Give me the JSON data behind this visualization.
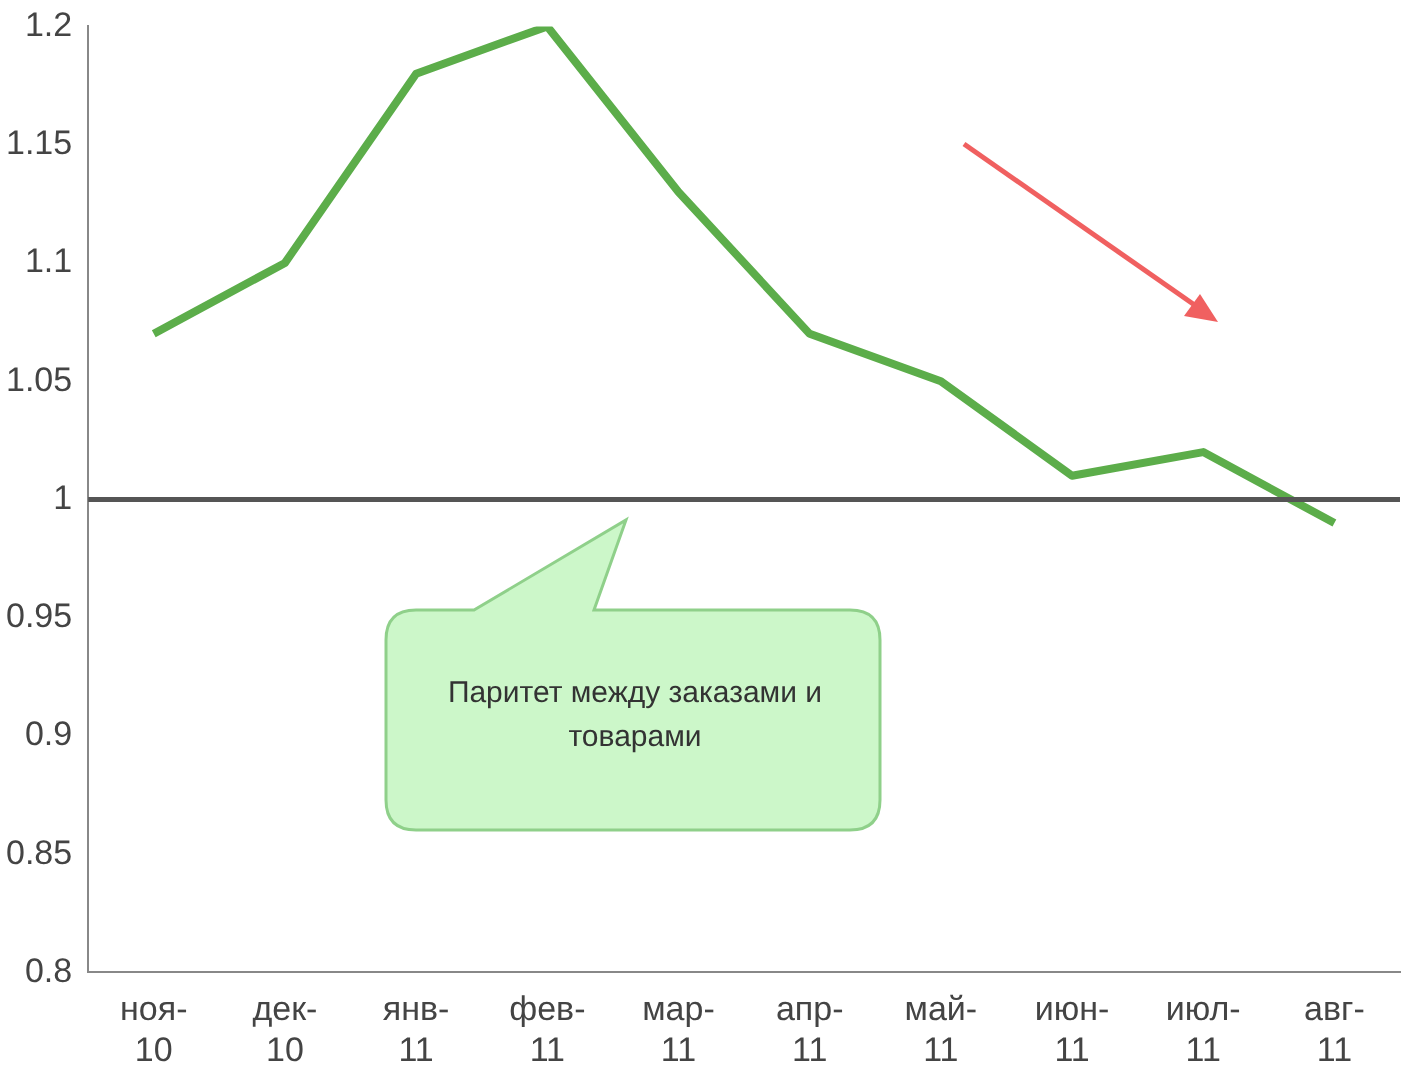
{
  "chart_data": {
    "type": "line",
    "categories": [
      "ноя-10",
      "дек-10",
      "янв-11",
      "фев-11",
      "мар-11",
      "апр-11",
      "май-11",
      "июн-11",
      "июл-11",
      "авг-11"
    ],
    "series": [
      {
        "color": "#5cad4a",
        "values": [
          1.07,
          1.1,
          1.18,
          1.2,
          1.13,
          1.07,
          1.05,
          1.01,
          1.02,
          0.99
        ]
      }
    ],
    "ylim": [
      0.8,
      1.2
    ],
    "yticks": [
      0.8,
      0.85,
      0.9,
      0.95,
      1,
      1.05,
      1.1,
      1.15,
      1.2
    ],
    "ref_lines": [
      {
        "axis": "y",
        "value": 1,
        "label": "Паритет между заказами и товарами",
        "color": "#555555"
      }
    ],
    "grid": false,
    "legend": false,
    "marker": "none",
    "line_style": "solid"
  }
}
